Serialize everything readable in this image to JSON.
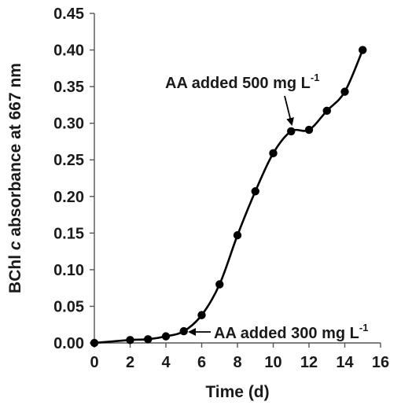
{
  "chart_data": {
    "type": "line",
    "title": "",
    "xlabel": "Time (d)",
    "ylabel": {
      "prefix": "BChl ",
      "italic": "c",
      "suffix": " absorbance at 667 nm"
    },
    "xlim": [
      0,
      16
    ],
    "ylim": [
      0,
      0.45
    ],
    "xticks": [
      0,
      2,
      4,
      6,
      8,
      10,
      12,
      14,
      16
    ],
    "yticks": [
      0,
      0.05,
      0.1,
      0.15,
      0.2,
      0.25,
      0.3,
      0.35,
      0.4,
      0.45
    ],
    "ytick_labels": [
      "0.00",
      "0.05",
      "0.10",
      "0.15",
      "0.20",
      "0.25",
      "0.30",
      "0.35",
      "0.40",
      "0.45"
    ],
    "xtick_labels": [
      "0",
      "2",
      "4",
      "6",
      "8",
      "10",
      "12",
      "14",
      "16"
    ],
    "grid": false,
    "legend": "none",
    "series": [
      {
        "x": [
          0,
          2,
          3,
          4,
          5,
          6,
          7,
          8,
          9,
          10,
          11,
          12,
          13,
          14,
          15
        ],
        "y": [
          0.0,
          0.004,
          0.005,
          0.009,
          0.016,
          0.038,
          0.08,
          0.147,
          0.207,
          0.259,
          0.289,
          0.291,
          0.317,
          0.343,
          0.4
        ],
        "color": "#000000",
        "marker": "circle"
      }
    ],
    "annotations": [
      {
        "text": "AA added 300 mg L",
        "superscript": "-1",
        "target": {
          "x": 5,
          "y": 0.016
        }
      },
      {
        "text": "AA added 500 mg L",
        "superscript": "-1",
        "target": {
          "x": 11,
          "y": 0.289
        }
      }
    ]
  }
}
